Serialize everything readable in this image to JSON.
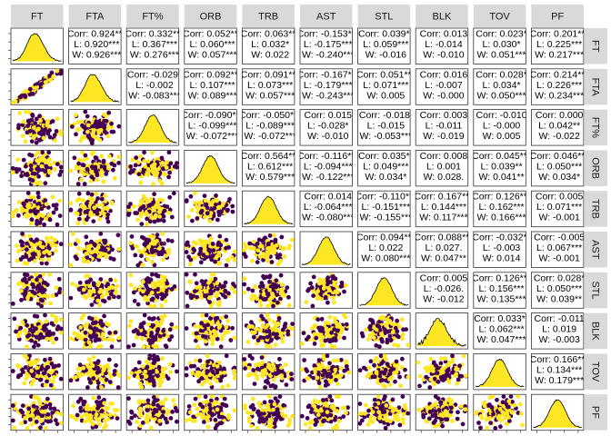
{
  "chart_data": {
    "type": "scatter",
    "variables": [
      "FT",
      "FTA",
      "FT%",
      "ORB",
      "TRB",
      "AST",
      "STL",
      "BLK",
      "TOV",
      "PF"
    ],
    "groups": [
      "L",
      "W"
    ],
    "group_colors": {
      "L": "#440154",
      "W": "#fde725"
    },
    "colors": {
      "strip_bg": "#d9d9d9",
      "panel_border": "#333333",
      "density_line": "#000000"
    },
    "upper_cells": [
      {
        "row": 0,
        "col": 1,
        "lines": [
          "Corr: 0.924***",
          "L: 0.920***",
          "W: 0.926***"
        ]
      },
      {
        "row": 0,
        "col": 2,
        "lines": [
          "Corr: 0.332***",
          "L: 0.367***",
          "W: 0.276***"
        ]
      },
      {
        "row": 0,
        "col": 3,
        "lines": [
          "Corr: 0.052***",
          "L: 0.060***",
          "W: 0.057***"
        ]
      },
      {
        "row": 0,
        "col": 4,
        "lines": [
          "Corr: 0.063***",
          "L: 0.032*",
          "W: 0.022"
        ]
      },
      {
        "row": 0,
        "col": 5,
        "lines": [
          "Corr: -0.153***",
          "L: -0.175***",
          "W: -0.240***"
        ]
      },
      {
        "row": 0,
        "col": 6,
        "lines": [
          "Corr: 0.039**",
          "L: 0.059***",
          "W: -0.016"
        ]
      },
      {
        "row": 0,
        "col": 7,
        "lines": [
          "Corr: 0.013",
          "L: -0.014",
          "W: -0.010"
        ]
      },
      {
        "row": 0,
        "col": 8,
        "lines": [
          "Corr: 0.023*",
          "L: 0.030*",
          "W: 0.051***"
        ]
      },
      {
        "row": 0,
        "col": 9,
        "lines": [
          "Corr: 0.201***",
          "L: 0.225***",
          "W: 0.217***"
        ]
      },
      {
        "row": 1,
        "col": 2,
        "lines": [
          "Corr: -0.029*",
          "L: -0.002",
          "W: -0.083***"
        ]
      },
      {
        "row": 1,
        "col": 3,
        "lines": [
          "Corr: 0.092***",
          "L: 0.107***",
          "W: 0.089***"
        ]
      },
      {
        "row": 1,
        "col": 4,
        "lines": [
          "Corr: 0.091***",
          "L: 0.073***",
          "W: 0.057***"
        ]
      },
      {
        "row": 1,
        "col": 5,
        "lines": [
          "Corr: -0.167***",
          "L: -0.179***",
          "W: -0.243***"
        ]
      },
      {
        "row": 1,
        "col": 6,
        "lines": [
          "Corr: 0.051***",
          "L: 0.071***",
          "W: 0.005"
        ]
      },
      {
        "row": 1,
        "col": 7,
        "lines": [
          "Corr: 0.016",
          "L: -0.007",
          "W: -0.000"
        ]
      },
      {
        "row": 1,
        "col": 8,
        "lines": [
          "Corr: 0.028*",
          "L: 0.034*",
          "W: 0.050***"
        ]
      },
      {
        "row": 1,
        "col": 9,
        "lines": [
          "Corr: 0.214***",
          "L: 0.226***",
          "W: 0.234***"
        ]
      },
      {
        "row": 2,
        "col": 3,
        "lines": [
          "Corr: -0.090***",
          "L: -0.099***",
          "W: -0.072***"
        ]
      },
      {
        "row": 2,
        "col": 4,
        "lines": [
          "Corr: -0.050***",
          "L: -0.089***",
          "W: -0.072***"
        ]
      },
      {
        "row": 2,
        "col": 5,
        "lines": [
          "Corr: 0.015",
          "L: -0.028*",
          "W: -0.010"
        ]
      },
      {
        "row": 2,
        "col": 6,
        "lines": [
          "Corr: -0.018.",
          "L: -0.015",
          "W: -0.053***"
        ]
      },
      {
        "row": 2,
        "col": 7,
        "lines": [
          "Corr: 0.003",
          "L: -0.011",
          "W: -0.019"
        ]
      },
      {
        "row": 2,
        "col": 8,
        "lines": [
          "Corr: -0.010",
          "L: -0.000",
          "W: 0.005"
        ]
      },
      {
        "row": 2,
        "col": 9,
        "lines": [
          "Corr: 0.000",
          "L: 0.042**",
          "W: -0.022"
        ]
      },
      {
        "row": 3,
        "col": 4,
        "lines": [
          "Corr: 0.564***",
          "L: 0.612***",
          "W: 0.579***"
        ]
      },
      {
        "row": 3,
        "col": 5,
        "lines": [
          "Corr: -0.116***",
          "L: -0.094***",
          "W: -0.122***"
        ]
      },
      {
        "row": 3,
        "col": 6,
        "lines": [
          "Corr: 0.035**",
          "L: 0.049***",
          "W: 0.034*"
        ]
      },
      {
        "row": 3,
        "col": 7,
        "lines": [
          "Corr: 0.008",
          "L: 0.001",
          "W: 0.028."
        ]
      },
      {
        "row": 3,
        "col": 8,
        "lines": [
          "Corr: 0.045***",
          "L: 0.039**",
          "W: 0.041**"
        ]
      },
      {
        "row": 3,
        "col": 9,
        "lines": [
          "Corr: 0.046***",
          "L: 0.050***",
          "W: 0.034*"
        ]
      },
      {
        "row": 4,
        "col": 5,
        "lines": [
          "Corr: 0.014",
          "L: -0.064***",
          "W: -0.080***"
        ]
      },
      {
        "row": 4,
        "col": 6,
        "lines": [
          "Corr: -0.110***",
          "L: -0.151***",
          "W: -0.155***"
        ]
      },
      {
        "row": 4,
        "col": 7,
        "lines": [
          "Corr: 0.167***",
          "L: 0.144***",
          "W: 0.117***"
        ]
      },
      {
        "row": 4,
        "col": 8,
        "lines": [
          "Corr: 0.126***",
          "L: 0.162***",
          "W: 0.166***"
        ]
      },
      {
        "row": 4,
        "col": 9,
        "lines": [
          "Corr: 0.005",
          "L: 0.071***",
          "W: -0.001"
        ]
      },
      {
        "row": 5,
        "col": 6,
        "lines": [
          "Corr: 0.094***",
          "L: 0.022",
          "W: 0.080***"
        ]
      },
      {
        "row": 5,
        "col": 7,
        "lines": [
          "Corr: 0.088***",
          "L: 0.027.",
          "W: 0.047**"
        ]
      },
      {
        "row": 5,
        "col": 8,
        "lines": [
          "Corr: -0.032**",
          "L: -0.003",
          "W: 0.014"
        ]
      },
      {
        "row": 5,
        "col": 9,
        "lines": [
          "Corr: -0.005",
          "L: 0.067***",
          "W: -0.001"
        ]
      },
      {
        "row": 6,
        "col": 7,
        "lines": [
          "Corr: 0.005",
          "L: -0.026.",
          "W: -0.012"
        ]
      },
      {
        "row": 6,
        "col": 8,
        "lines": [
          "Corr: 0.126***",
          "L: 0.156***",
          "W: 0.135***"
        ]
      },
      {
        "row": 6,
        "col": 9,
        "lines": [
          "Corr: 0.028*",
          "L: 0.050***",
          "W: 0.039**"
        ]
      },
      {
        "row": 7,
        "col": 8,
        "lines": [
          "Corr: 0.033**",
          "L: 0.062***",
          "W: 0.047***"
        ]
      },
      {
        "row": 7,
        "col": 9,
        "lines": [
          "Corr: -0.011",
          "L: 0.019",
          "W: -0.003"
        ]
      },
      {
        "row": 8,
        "col": 9,
        "lines": [
          "Corr: 0.166***",
          "L: 0.134***",
          "W: 0.179***"
        ]
      }
    ]
  }
}
